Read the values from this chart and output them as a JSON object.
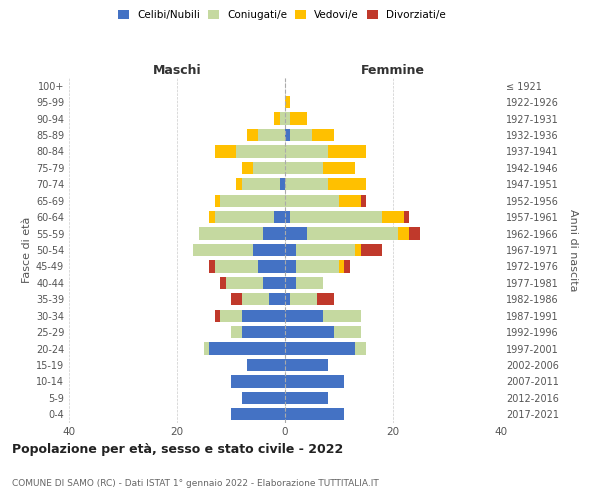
{
  "age_groups": [
    "0-4",
    "5-9",
    "10-14",
    "15-19",
    "20-24",
    "25-29",
    "30-34",
    "35-39",
    "40-44",
    "45-49",
    "50-54",
    "55-59",
    "60-64",
    "65-69",
    "70-74",
    "75-79",
    "80-84",
    "85-89",
    "90-94",
    "95-99",
    "100+"
  ],
  "birth_years": [
    "2017-2021",
    "2012-2016",
    "2007-2011",
    "2002-2006",
    "1997-2001",
    "1992-1996",
    "1987-1991",
    "1982-1986",
    "1977-1981",
    "1972-1976",
    "1967-1971",
    "1962-1966",
    "1957-1961",
    "1952-1956",
    "1947-1951",
    "1942-1946",
    "1937-1941",
    "1932-1936",
    "1927-1931",
    "1922-1926",
    "≤ 1921"
  ],
  "maschi": {
    "celibi": [
      10,
      8,
      10,
      7,
      14,
      8,
      8,
      3,
      4,
      5,
      6,
      4,
      2,
      0,
      1,
      0,
      0,
      0,
      0,
      0,
      0
    ],
    "coniugati": [
      0,
      0,
      0,
      0,
      1,
      2,
      4,
      5,
      7,
      8,
      11,
      12,
      11,
      12,
      7,
      6,
      9,
      5,
      1,
      0,
      0
    ],
    "vedovi": [
      0,
      0,
      0,
      0,
      0,
      0,
      0,
      0,
      0,
      0,
      0,
      0,
      1,
      1,
      1,
      2,
      4,
      2,
      1,
      0,
      0
    ],
    "divorziati": [
      0,
      0,
      0,
      0,
      0,
      0,
      1,
      2,
      1,
      1,
      0,
      0,
      0,
      0,
      0,
      0,
      0,
      0,
      0,
      0,
      0
    ]
  },
  "femmine": {
    "nubili": [
      11,
      8,
      11,
      8,
      13,
      9,
      7,
      1,
      2,
      2,
      2,
      4,
      1,
      0,
      0,
      0,
      0,
      1,
      0,
      0,
      0
    ],
    "coniugate": [
      0,
      0,
      0,
      0,
      2,
      5,
      7,
      5,
      5,
      8,
      11,
      17,
      17,
      10,
      8,
      7,
      8,
      4,
      1,
      0,
      0
    ],
    "vedove": [
      0,
      0,
      0,
      0,
      0,
      0,
      0,
      0,
      0,
      1,
      1,
      2,
      4,
      4,
      7,
      6,
      7,
      4,
      3,
      1,
      0
    ],
    "divorziate": [
      0,
      0,
      0,
      0,
      0,
      0,
      0,
      3,
      0,
      1,
      4,
      2,
      1,
      1,
      0,
      0,
      0,
      0,
      0,
      0,
      0
    ]
  },
  "colors": {
    "celibi_nubili": "#4472C4",
    "coniugati": "#c5d9a0",
    "vedovi": "#ffc000",
    "divorziati": "#c0392b"
  },
  "title": "Popolazione per età, sesso e stato civile - 2022",
  "subtitle": "COMUNE DI SAMO (RC) - Dati ISTAT 1° gennaio 2022 - Elaborazione TUTTITALIA.IT",
  "xlabel_left": "Maschi",
  "xlabel_right": "Femmine",
  "ylabel_left": "Fasce di età",
  "ylabel_right": "Anni di nascita",
  "xlim": 40,
  "background_color": "#ffffff",
  "grid_color": "#cccccc"
}
